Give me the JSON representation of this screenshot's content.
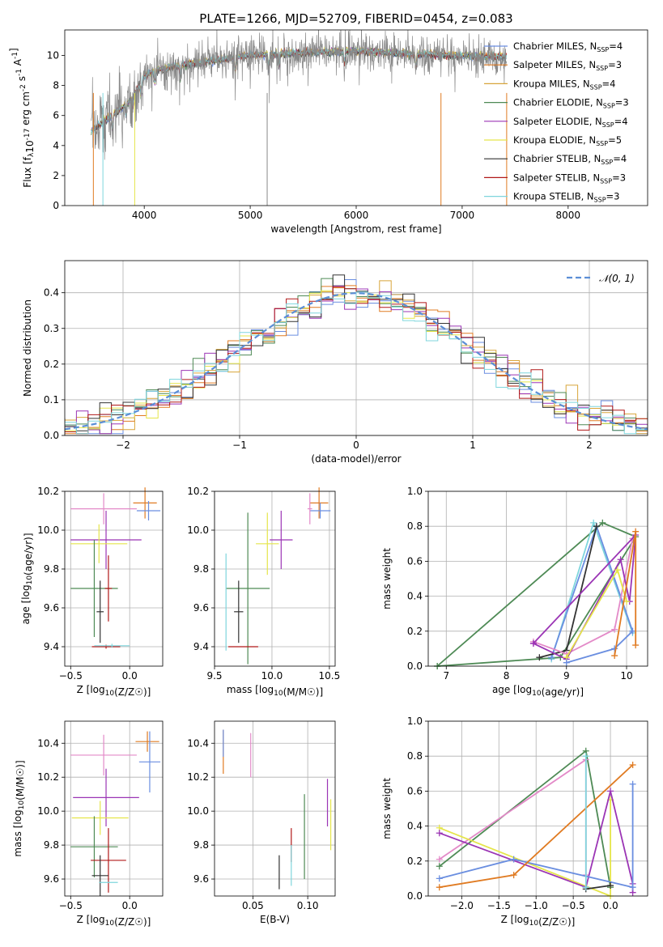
{
  "chart_data": [
    {
      "id": "spectrum",
      "type": "line",
      "title": "PLATE=1266, MJD=52709, FIBERID=0454, z=0.083",
      "xlabel": "wavelength [Angstrom, rest frame]",
      "ylabel": "Flux [f_λ10^-17 erg cm^-2 s^-1 A^-1]",
      "xlim": [
        3250,
        8750
      ],
      "ylim": [
        0,
        11.7
      ],
      "xticks": [
        "4000",
        "5000",
        "6000",
        "7000",
        "8000"
      ],
      "yticks": [
        "0",
        "2",
        "4",
        "6",
        "8",
        "10"
      ],
      "grid": false,
      "legend_position": "right",
      "continuum": {
        "x": [
          3500,
          3600,
          3700,
          3800,
          3900,
          4000,
          4100,
          4300,
          4500,
          4800,
          5000,
          5300,
          5600,
          6000,
          6500,
          7000,
          7400
        ],
        "y": [
          5.0,
          5.5,
          6.0,
          6.6,
          7.3,
          8.6,
          9.0,
          9.3,
          9.5,
          9.8,
          10.0,
          10.1,
          10.2,
          10.3,
          10.1,
          10.0,
          9.9
        ]
      },
      "series": [
        {
          "name": "Chabrier MILES, N_SSP=4",
          "color": "#6a8ee0"
        },
        {
          "name": "Salpeter MILES, N_SSP=3",
          "color": "#e07b22"
        },
        {
          "name": "Kroupa MILES, N_SSP=4",
          "color": "#d8a53a"
        },
        {
          "name": "Chabrier ELODIE, N_SSP=3",
          "color": "#4e8a55"
        },
        {
          "name": "Salpeter ELODIE, N_SSP=4",
          "color": "#9b35b5"
        },
        {
          "name": "Kroupa ELODIE, N_SSP=5",
          "color": "#e5e54a"
        },
        {
          "name": "Chabrier STELIB, N_SSP=4",
          "color": "#333333"
        },
        {
          "name": "Salpeter STELIB, N_SSP=3",
          "color": "#b01818"
        },
        {
          "name": "Kroupa STELIB, N_SSP=3",
          "color": "#7fd6dd"
        }
      ]
    },
    {
      "id": "residuals",
      "type": "bar",
      "xlabel": "(data-model)/error",
      "ylabel": "Normed distribution",
      "xlim": [
        -2.5,
        2.5
      ],
      "ylim": [
        0,
        0.49
      ],
      "xticks": [
        "−2",
        "−1",
        "0",
        "1",
        "2"
      ],
      "yticks": [
        "0.0",
        "0.1",
        "0.2",
        "0.3",
        "0.4"
      ],
      "grid": true,
      "legend_position": "top-right",
      "legend_label": "𝒩(0, 1)",
      "bin_width": 0.1,
      "gaussian": {
        "mean": 0,
        "sigma": 1,
        "color": "#5b8ed6"
      }
    },
    {
      "id": "age-vs-Z",
      "type": "scatter",
      "xlabel": "Z [log10(Z/Z☉)]",
      "ylabel": "age [log10(age/yr)]",
      "xlim": [
        -0.55,
        0.28
      ],
      "ylim": [
        9.3,
        10.2
      ],
      "xticks": [
        "−0.5",
        "0.0"
      ],
      "yticks": [
        "9.4",
        "9.6",
        "9.8",
        "10.0",
        "10.2"
      ],
      "grid": true,
      "points": [
        {
          "x": 0.13,
          "y": 10.14,
          "xerr": 0.1,
          "yerr": 0.08,
          "color": "#e07b22"
        },
        {
          "x": 0.16,
          "y": 10.1,
          "xerr": 0.1,
          "yerr": 0.05,
          "color": "#6a8ee0"
        },
        {
          "x": -0.22,
          "y": 10.11,
          "xerr": 0.28,
          "yerr": 0.08,
          "color": "#e38ac8"
        },
        {
          "x": -0.2,
          "y": 9.95,
          "xerr": 0.3,
          "yerr": 0.15,
          "color": "#9b35b5"
        },
        {
          "x": -0.26,
          "y": 9.93,
          "xerr": 0.24,
          "yerr": 0.1,
          "color": "#e5e54a"
        },
        {
          "x": -0.3,
          "y": 9.7,
          "xerr": 0.2,
          "yerr": 0.25,
          "color": "#4e8a55"
        },
        {
          "x": -0.18,
          "y": 9.7,
          "xerr": 0.03,
          "yerr": 0.17,
          "color": "#b01818"
        },
        {
          "x": -0.25,
          "y": 9.58,
          "xerr": 0.03,
          "yerr": 0.16,
          "color": "#333333"
        },
        {
          "x": -0.2,
          "y": 9.4,
          "xerr": 0.12,
          "yerr": 0.01,
          "color": "#b01818"
        },
        {
          "x": -0.15,
          "y": 9.405,
          "xerr": 0.15,
          "yerr": 0.01,
          "color": "#7fd6dd"
        }
      ]
    },
    {
      "id": "age-vs-mass",
      "type": "scatter",
      "xlabel": "mass [log10(M/M☉)]",
      "ylabel": "",
      "xlim": [
        9.5,
        10.55
      ],
      "ylim": [
        9.3,
        10.2
      ],
      "xticks": [
        "9.5",
        "10.0",
        "10.5"
      ],
      "yticks": [
        "9.4",
        "9.6",
        "9.8",
        "10.0",
        "10.2"
      ],
      "grid": true,
      "points": [
        {
          "x": 10.41,
          "y": 10.14,
          "xerr": 0.08,
          "yerr": 0.08,
          "color": "#e07b22"
        },
        {
          "x": 10.42,
          "y": 10.1,
          "xerr": 0.09,
          "yerr": 0.04,
          "color": "#6a8ee0"
        },
        {
          "x": 10.33,
          "y": 10.11,
          "xerr": 0.02,
          "yerr": 0.08,
          "color": "#e38ac8"
        },
        {
          "x": 10.08,
          "y": 9.95,
          "xerr": 0.1,
          "yerr": 0.15,
          "color": "#9b35b5"
        },
        {
          "x": 9.96,
          "y": 9.93,
          "xerr": 0.1,
          "yerr": 0.16,
          "color": "#e5e54a"
        },
        {
          "x": 9.79,
          "y": 9.7,
          "xerr": 0.19,
          "yerr": 0.39,
          "color": "#4e8a55"
        },
        {
          "x": 9.71,
          "y": 9.58,
          "xerr": 0.04,
          "yerr": 0.16,
          "color": "#333333"
        },
        {
          "x": 9.6,
          "y": 9.63,
          "xerr": 0.0,
          "yerr": 0.25,
          "color": "#7fd6dd"
        },
        {
          "x": 9.75,
          "y": 9.4,
          "xerr": 0.13,
          "yerr": 0.0,
          "color": "#b01818"
        }
      ]
    },
    {
      "id": "massweight-vs-age",
      "type": "line",
      "xlabel": "age [log10(age/yr)]",
      "ylabel": "mass weight",
      "xlim": [
        6.7,
        10.35
      ],
      "ylim": [
        0,
        1
      ],
      "xticks": [
        "7",
        "8",
        "9",
        "10"
      ],
      "yticks": [
        "0.0",
        "0.2",
        "0.4",
        "0.6",
        "0.8",
        "1.0"
      ],
      "grid": true,
      "series": [
        {
          "color": "#4e8a55",
          "x": [
            6.85,
            9.6,
            10.15,
            8.9,
            6.85
          ],
          "y": [
            0.0,
            0.82,
            0.74,
            0.05,
            0.0
          ]
        },
        {
          "color": "#7fd6dd",
          "x": [
            8.75,
            9.45,
            10.1
          ],
          "y": [
            0.04,
            0.82,
            0.19
          ]
        },
        {
          "color": "#6a8ee0",
          "x": [
            8.75,
            9.5,
            10.1
          ],
          "y": [
            0.05,
            0.8,
            0.2
          ]
        },
        {
          "color": "#333333",
          "x": [
            8.55,
            9.0,
            9.5
          ],
          "y": [
            0.05,
            0.09,
            0.8
          ]
        },
        {
          "color": "#e38ac8",
          "x": [
            8.45,
            9.0,
            9.8,
            10.1
          ],
          "y": [
            0.14,
            0.07,
            0.21,
            0.73
          ]
        },
        {
          "color": "#9b35b5",
          "x": [
            8.45,
            9.0,
            9.9,
            10.05,
            10.15,
            8.45
          ],
          "y": [
            0.13,
            0.04,
            0.61,
            0.37,
            0.75,
            0.13
          ]
        },
        {
          "color": "#e5e54a",
          "x": [
            9.0,
            9.85,
            10.0
          ],
          "y": [
            0.05,
            0.55,
            0.37
          ]
        },
        {
          "color": "#6a8ee0",
          "x": [
            9.0,
            9.8,
            10.1
          ],
          "y": [
            0.02,
            0.1,
            0.2
          ]
        },
        {
          "color": "#e07b22",
          "x": [
            9.8,
            10.15,
            10.15
          ],
          "y": [
            0.06,
            0.77,
            0.12
          ]
        }
      ]
    },
    {
      "id": "mass-vs-Z",
      "type": "scatter",
      "xlabel": "Z [log10(Z/Z☉)]",
      "ylabel": "mass [log10(M/M☉)]",
      "xlim": [
        -0.55,
        0.28
      ],
      "ylim": [
        9.5,
        10.53
      ],
      "xticks": [
        "−0.5",
        "0.0"
      ],
      "yticks": [
        "9.6",
        "9.8",
        "10.0",
        "10.2",
        "10.4"
      ],
      "grid": true,
      "points": [
        {
          "x": 0.15,
          "y": 10.41,
          "xerr": 0.1,
          "yerr": 0.06,
          "color": "#e07b22"
        },
        {
          "x": 0.17,
          "y": 10.29,
          "xerr": 0.09,
          "yerr": 0.18,
          "color": "#6a8ee0"
        },
        {
          "x": -0.22,
          "y": 10.33,
          "xerr": 0.28,
          "yerr": 0.12,
          "color": "#e38ac8"
        },
        {
          "x": -0.2,
          "y": 10.08,
          "xerr": 0.28,
          "yerr": 0.17,
          "color": "#9b35b5"
        },
        {
          "x": -0.25,
          "y": 9.96,
          "xerr": 0.24,
          "yerr": 0.1,
          "color": "#e5e54a"
        },
        {
          "x": -0.3,
          "y": 9.79,
          "xerr": 0.2,
          "yerr": 0.18,
          "color": "#4e8a55"
        },
        {
          "x": -0.18,
          "y": 9.71,
          "xerr": 0.15,
          "yerr": 0.19,
          "color": "#b01818"
        },
        {
          "x": -0.25,
          "y": 9.62,
          "xerr": 0.07,
          "yerr": 0.12,
          "color": "#333333"
        },
        {
          "x": -0.18,
          "y": 9.58,
          "xerr": 0.08,
          "yerr": 0.0,
          "color": "#7fd6dd"
        }
      ]
    },
    {
      "id": "mass-vs-ebv",
      "type": "scatter",
      "xlabel": "E(B-V)",
      "ylabel": "",
      "xlim": [
        0.015,
        0.125
      ],
      "ylim": [
        9.5,
        10.53
      ],
      "xticks": [
        "0.05",
        "0.10"
      ],
      "yticks": [
        "9.6",
        "9.8",
        "10.0",
        "10.2",
        "10.4"
      ],
      "grid": true,
      "points": [
        {
          "x": 0.023,
          "y": 10.35,
          "xerr": 0.0,
          "yerr": 0.13,
          "color": "#e07b22"
        },
        {
          "x": 0.023,
          "y": 10.4,
          "xerr": 0.0,
          "yerr": 0.08,
          "color": "#6a8ee0"
        },
        {
          "x": 0.048,
          "y": 10.33,
          "xerr": 0.0,
          "yerr": 0.13,
          "color": "#e38ac8"
        },
        {
          "x": 0.118,
          "y": 10.05,
          "xerr": 0.0,
          "yerr": 0.14,
          "color": "#9b35b5"
        },
        {
          "x": 0.121,
          "y": 9.92,
          "xerr": 0.0,
          "yerr": 0.15,
          "color": "#e5e54a"
        },
        {
          "x": 0.097,
          "y": 9.85,
          "xerr": 0.0,
          "yerr": 0.25,
          "color": "#4e8a55"
        },
        {
          "x": 0.085,
          "y": 9.8,
          "xerr": 0.0,
          "yerr": 0.1,
          "color": "#b01818"
        },
        {
          "x": 0.074,
          "y": 9.64,
          "xerr": 0.0,
          "yerr": 0.1,
          "color": "#333333"
        },
        {
          "x": 0.085,
          "y": 9.68,
          "xerr": 0.0,
          "yerr": 0.12,
          "color": "#7fd6dd"
        }
      ]
    },
    {
      "id": "massweight-vs-Z",
      "type": "line",
      "xlabel": "Z [log10(Z/Z☉)]",
      "ylabel": "mass weight",
      "xlim": [
        -2.45,
        0.5
      ],
      "ylim": [
        0,
        1
      ],
      "xticks": [
        "−2.0",
        "−1.5",
        "−1.0",
        "−0.5",
        "0.0"
      ],
      "yticks": [
        "0.0",
        "0.2",
        "0.4",
        "0.6",
        "0.8",
        "1.0"
      ],
      "grid": true,
      "series": [
        {
          "color": "#4e8a55",
          "x": [
            -2.3,
            -0.33,
            0.0
          ],
          "y": [
            0.17,
            0.83,
            0.05
          ]
        },
        {
          "color": "#e38ac8",
          "x": [
            -2.3,
            -0.33,
            -0.33
          ],
          "y": [
            0.21,
            0.78,
            0.12
          ]
        },
        {
          "color": "#e5e54a",
          "x": [
            -2.3,
            0.0,
            0.0
          ],
          "y": [
            0.39,
            0.0,
            0.55
          ]
        },
        {
          "color": "#9b35b5",
          "x": [
            -2.3,
            -0.33,
            0.0,
            0.3,
            0.3
          ],
          "y": [
            0.36,
            0.05,
            0.6,
            0.07,
            0.02
          ]
        },
        {
          "color": "#6a8ee0",
          "x": [
            -2.3,
            -1.3,
            0.3,
            0.3
          ],
          "y": [
            0.1,
            0.21,
            0.05,
            0.64
          ]
        },
        {
          "color": "#e07b22",
          "x": [
            -2.3,
            -1.3,
            0.3
          ],
          "y": [
            0.05,
            0.12,
            0.75
          ]
        },
        {
          "color": "#333333",
          "x": [
            -0.33,
            0.0
          ],
          "y": [
            0.04,
            0.06
          ]
        },
        {
          "color": "#7fd6dd",
          "x": [
            -0.33,
            -0.33
          ],
          "y": [
            0.8,
            0.05
          ]
        }
      ]
    }
  ]
}
